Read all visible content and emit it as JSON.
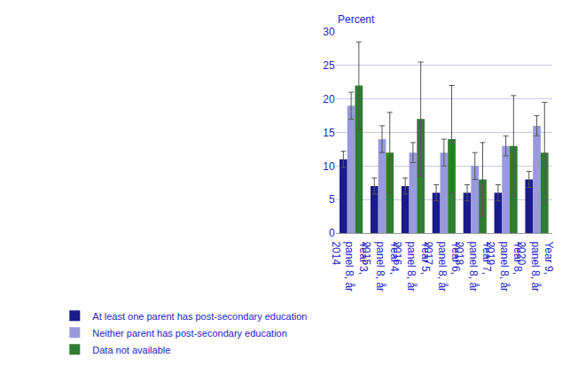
{
  "chart_data": {
    "type": "bar",
    "ylabel": "Percent",
    "categories": [
      "Year 3,\npanel 8, år\n2014",
      "Year 4,\npanel 8, år\n2015",
      "Year 5,\npanel 8, år\n2016",
      "Year 6,\npanel 8, år\n2017",
      "Year 7,\npanel 8, år\n2018",
      "Year 8,\npanel 8, år\n2019",
      "Year 9,\npanel 8, år\n2020"
    ],
    "series": [
      {
        "name": "At least one parent has post-secondary education",
        "color": "#1a1a8c",
        "values": [
          11,
          7,
          7,
          6,
          6,
          6,
          8
        ],
        "errors": [
          1.2,
          1.2,
          1.2,
          1.2,
          1.2,
          1.2,
          1.2
        ]
      },
      {
        "name": "Neither parent has post-secondary education",
        "color": "#9999dd",
        "values": [
          19,
          14,
          12,
          12,
          10,
          13,
          16
        ],
        "errors": [
          2.0,
          2.0,
          1.5,
          2.0,
          2.0,
          1.5,
          1.5
        ]
      },
      {
        "name": "Data not available",
        "color": "#2e7d32",
        "values": [
          22,
          12,
          17,
          14,
          8,
          13,
          12
        ],
        "errors": [
          6.5,
          6.0,
          8.5,
          8.0,
          5.5,
          7.5,
          7.5
        ]
      }
    ],
    "ylim": [
      0,
      30
    ],
    "yticks": [
      0,
      5,
      10,
      15,
      20,
      25,
      30
    ],
    "grid": true,
    "legend": "bottom"
  }
}
